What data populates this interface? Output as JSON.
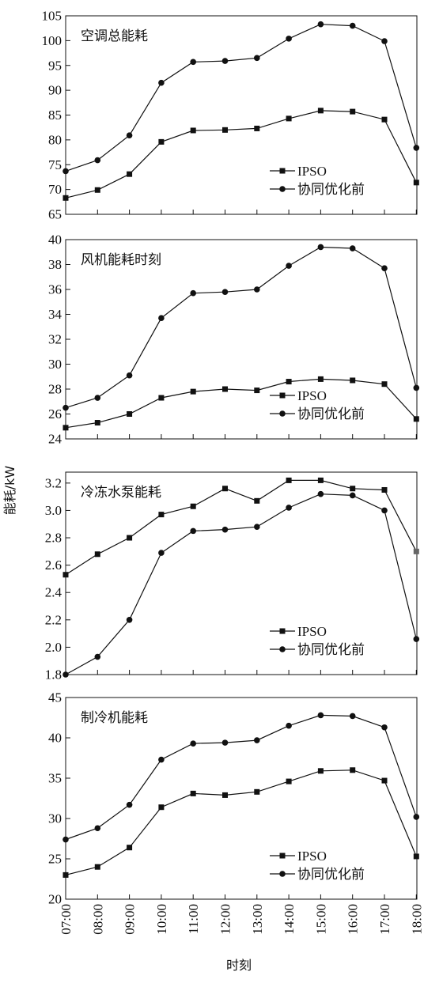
{
  "axis_titles": {
    "y": "能耗/kW",
    "x": "时刻"
  },
  "chart_data": [
    {
      "type": "line",
      "title": "空调总能耗",
      "categories": [
        "07:00",
        "08:00",
        "09:00",
        "10:00",
        "11:00",
        "12:00",
        "13:00",
        "14:00",
        "15:00",
        "16:00",
        "17:00",
        "18:00"
      ],
      "yticks": [
        "65",
        "70",
        "75",
        "80",
        "85",
        "90",
        "95",
        "100",
        "105"
      ],
      "ylim": [
        65,
        105
      ],
      "legend_position": "lower-right",
      "series": [
        {
          "name": "IPSO",
          "marker": "square",
          "color": "#111111",
          "values": [
            68.3,
            69.9,
            73.1,
            79.6,
            81.9,
            82.0,
            82.3,
            84.3,
            85.9,
            85.7,
            84.1,
            71.4
          ]
        },
        {
          "name": "协同优化前",
          "marker": "circle",
          "color": "#111111",
          "values": [
            73.7,
            75.9,
            80.9,
            91.5,
            95.7,
            95.9,
            96.5,
            100.4,
            103.3,
            103.0,
            99.9,
            78.4
          ]
        }
      ]
    },
    {
      "type": "line",
      "title": "风机能耗时刻",
      "categories": [
        "07:00",
        "08:00",
        "09:00",
        "10:00",
        "11:00",
        "12:00",
        "13:00",
        "14:00",
        "15:00",
        "16:00",
        "17:00",
        "18:00"
      ],
      "yticks": [
        "24",
        "26",
        "28",
        "30",
        "32",
        "34",
        "36",
        "38",
        "40"
      ],
      "ylim": [
        24,
        40
      ],
      "legend_position": "lower-right",
      "series": [
        {
          "name": "IPSO",
          "marker": "square",
          "color": "#111111",
          "values": [
            24.9,
            25.3,
            26.0,
            27.3,
            27.8,
            28.0,
            27.9,
            28.6,
            28.8,
            28.7,
            28.4,
            25.6
          ]
        },
        {
          "name": "协同优化前",
          "marker": "circle",
          "color": "#111111",
          "values": [
            26.5,
            27.3,
            29.1,
            33.7,
            35.7,
            35.8,
            36.0,
            37.9,
            39.4,
            39.3,
            37.7,
            28.1
          ]
        }
      ]
    },
    {
      "type": "line",
      "title": "冷冻水泵能耗",
      "categories": [
        "07:00",
        "08:00",
        "09:00",
        "10:00",
        "11:00",
        "12:00",
        "13:00",
        "14:00",
        "15:00",
        "16:00",
        "17:00",
        "18:00"
      ],
      "yticks": [
        "1.8",
        "2.0",
        "2.2",
        "2.4",
        "2.6",
        "2.8",
        "3.0",
        "3.2"
      ],
      "ylim": [
        1.8,
        3.28
      ],
      "legend_position": "lower-right",
      "series": [
        {
          "name": "IPSO",
          "marker": "square",
          "color": "#111111",
          "values": [
            2.53,
            2.68,
            2.8,
            2.97,
            3.03,
            3.16,
            3.07,
            3.22,
            3.22,
            3.16,
            3.15,
            2.7
          ]
        },
        {
          "name": "协同优化前",
          "marker": "circle",
          "color": "#111111",
          "values": [
            1.8,
            1.93,
            2.2,
            2.69,
            2.85,
            2.86,
            2.88,
            3.02,
            3.12,
            3.11,
            3.0,
            2.06
          ]
        }
      ]
    },
    {
      "type": "line",
      "title": "制冷机能耗",
      "categories": [
        "07:00",
        "08:00",
        "09:00",
        "10:00",
        "11:00",
        "12:00",
        "13:00",
        "14:00",
        "15:00",
        "16:00",
        "17:00",
        "18:00"
      ],
      "yticks": [
        "20",
        "25",
        "30",
        "35",
        "40",
        "45"
      ],
      "ylim": [
        20,
        45
      ],
      "legend_position": "lower-right",
      "series": [
        {
          "name": "IPSO",
          "marker": "square",
          "color": "#111111",
          "values": [
            23.0,
            24.0,
            26.4,
            31.4,
            33.1,
            32.9,
            33.3,
            34.6,
            35.9,
            36.0,
            34.7,
            25.3
          ]
        },
        {
          "name": "协同优化前",
          "marker": "circle",
          "color": "#111111",
          "values": [
            27.4,
            28.8,
            31.7,
            37.3,
            39.3,
            39.4,
            39.7,
            41.5,
            42.8,
            42.7,
            41.3,
            30.2
          ]
        }
      ]
    }
  ]
}
